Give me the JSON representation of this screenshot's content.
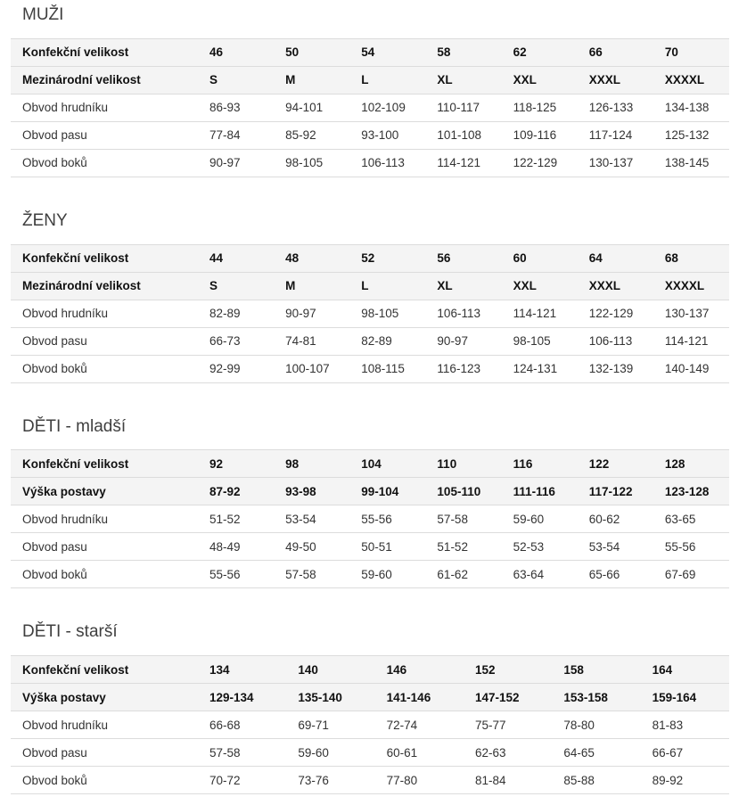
{
  "colors": {
    "header_row_bg": "#f4f4f4",
    "row_border": "#dcdcdc",
    "title_text": "#3f3f3f",
    "body_text": "#333333",
    "header_text": "#111111"
  },
  "sections": [
    {
      "title": "MUŽI",
      "rows": [
        {
          "label": "Konfekční velikost",
          "header": true,
          "values": [
            "46",
            "50",
            "54",
            "58",
            "62",
            "66",
            "70"
          ]
        },
        {
          "label": "Mezinárodní velikost",
          "header": true,
          "values": [
            "S",
            "M",
            "L",
            "XL",
            "XXL",
            "XXXL",
            "XXXXL"
          ]
        },
        {
          "label": "Obvod hrudníku",
          "header": false,
          "values": [
            "86-93",
            "94-101",
            "102-109",
            "110-117",
            "118-125",
            "126-133",
            "134-138"
          ]
        },
        {
          "label": "Obvod pasu",
          "header": false,
          "values": [
            "77-84",
            "85-92",
            "93-100",
            "101-108",
            "109-116",
            "117-124",
            "125-132"
          ]
        },
        {
          "label": "Obvod boků",
          "header": false,
          "values": [
            "90-97",
            "98-105",
            "106-113",
            "114-121",
            "122-129",
            "130-137",
            "138-145"
          ]
        }
      ]
    },
    {
      "title": "ŽENY",
      "rows": [
        {
          "label": "Konfekční velikost",
          "header": true,
          "values": [
            "44",
            "48",
            "52",
            "56",
            "60",
            "64",
            "68"
          ]
        },
        {
          "label": "Mezinárodní velikost",
          "header": true,
          "values": [
            "S",
            "M",
            "L",
            "XL",
            "XXL",
            "XXXL",
            "XXXXL"
          ]
        },
        {
          "label": "Obvod hrudníku",
          "header": false,
          "values": [
            "82-89",
            "90-97",
            "98-105",
            "106-113",
            "114-121",
            "122-129",
            "130-137"
          ]
        },
        {
          "label": "Obvod pasu",
          "header": false,
          "values": [
            "66-73",
            "74-81",
            "82-89",
            "90-97",
            "98-105",
            "106-113",
            "114-121"
          ]
        },
        {
          "label": "Obvod boků",
          "header": false,
          "values": [
            "92-99",
            "100-107",
            "108-115",
            "116-123",
            "124-131",
            "132-139",
            "140-149"
          ]
        }
      ]
    },
    {
      "title": "DĚTI - mladší",
      "rows": [
        {
          "label": "Konfekční velikost",
          "header": true,
          "values": [
            "92",
            "98",
            "104",
            "110",
            "116",
            "122",
            "128"
          ]
        },
        {
          "label": "Výška postavy",
          "header": true,
          "values": [
            "87-92",
            "93-98",
            "99-104",
            "105-110",
            "111-116",
            "117-122",
            "123-128"
          ]
        },
        {
          "label": "Obvod hrudníku",
          "header": false,
          "values": [
            "51-52",
            "53-54",
            "55-56",
            "57-58",
            "59-60",
            "60-62",
            "63-65"
          ]
        },
        {
          "label": "Obvod pasu",
          "header": false,
          "values": [
            "48-49",
            "49-50",
            "50-51",
            "51-52",
            "52-53",
            "53-54",
            "55-56"
          ]
        },
        {
          "label": "Obvod boků",
          "header": false,
          "values": [
            "55-56",
            "57-58",
            "59-60",
            "61-62",
            "63-64",
            "65-66",
            "67-69"
          ]
        }
      ]
    },
    {
      "title": "DĚTI - starší",
      "rows": [
        {
          "label": "Konfekční velikost",
          "header": true,
          "values": [
            "134",
            "140",
            "146",
            "152",
            "158",
            "164"
          ]
        },
        {
          "label": "Výška postavy",
          "header": true,
          "values": [
            "129-134",
            "135-140",
            "141-146",
            "147-152",
            "153-158",
            "159-164"
          ]
        },
        {
          "label": "Obvod hrudníku",
          "header": false,
          "values": [
            "66-68",
            "69-71",
            "72-74",
            "75-77",
            "78-80",
            "81-83"
          ]
        },
        {
          "label": "Obvod pasu",
          "header": false,
          "values": [
            "57-58",
            "59-60",
            "60-61",
            "62-63",
            "64-65",
            "66-67"
          ]
        },
        {
          "label": "Obvod boků",
          "header": false,
          "values": [
            "70-72",
            "73-76",
            "77-80",
            "81-84",
            "85-88",
            "89-92"
          ]
        }
      ]
    }
  ]
}
